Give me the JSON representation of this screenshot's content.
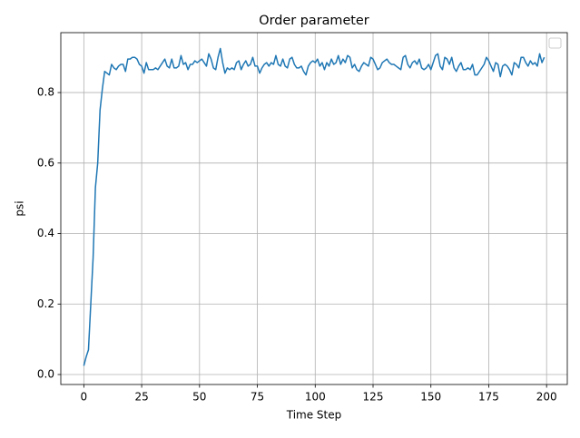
{
  "chart_data": {
    "type": "line",
    "title": "Order parameter",
    "xlabel": "Time Step",
    "ylabel": "psi",
    "x": [
      0,
      1,
      2,
      3,
      4,
      5,
      6,
      7,
      8,
      9,
      10,
      11,
      12,
      13,
      14,
      15,
      16,
      17,
      18,
      19,
      20,
      21,
      22,
      23,
      24,
      25,
      26,
      27,
      28,
      29,
      30,
      31,
      32,
      33,
      34,
      35,
      36,
      37,
      38,
      39,
      40,
      41,
      42,
      43,
      44,
      45,
      46,
      47,
      48,
      49,
      50,
      51,
      52,
      53,
      54,
      55,
      56,
      57,
      58,
      59,
      60,
      61,
      62,
      63,
      64,
      65,
      66,
      67,
      68,
      69,
      70,
      71,
      72,
      73,
      74,
      75,
      76,
      77,
      78,
      79,
      80,
      81,
      82,
      83,
      84,
      85,
      86,
      87,
      88,
      89,
      90,
      91,
      92,
      93,
      94,
      95,
      96,
      97,
      98,
      99,
      100,
      101,
      102,
      103,
      104,
      105,
      106,
      107,
      108,
      109,
      110,
      111,
      112,
      113,
      114,
      115,
      116,
      117,
      118,
      119,
      120,
      121,
      122,
      123,
      124,
      125,
      126,
      127,
      128,
      129,
      130,
      131,
      132,
      133,
      134,
      135,
      136,
      137,
      138,
      139,
      140,
      141,
      142,
      143,
      144,
      145,
      146,
      147,
      148,
      149,
      150,
      151,
      152,
      153,
      154,
      155,
      156,
      157,
      158,
      159,
      160,
      161,
      162,
      163,
      164,
      165,
      166,
      167,
      168,
      169,
      170,
      171,
      172,
      173,
      174,
      175,
      176,
      177,
      178,
      179,
      180,
      181,
      182,
      183,
      184,
      185,
      186,
      187,
      188,
      189,
      190,
      191,
      192,
      193,
      194,
      195,
      196,
      197,
      198,
      199
    ],
    "series": [
      {
        "color": "#1f77b4",
        "values": [
          0.025,
          0.05,
          0.07,
          0.2,
          0.33,
          0.53,
          0.6,
          0.75,
          0.81,
          0.86,
          0.855,
          0.85,
          0.88,
          0.87,
          0.865,
          0.875,
          0.88,
          0.88,
          0.86,
          0.895,
          0.895,
          0.9,
          0.9,
          0.895,
          0.88,
          0.875,
          0.855,
          0.885,
          0.865,
          0.865,
          0.865,
          0.87,
          0.865,
          0.875,
          0.885,
          0.895,
          0.875,
          0.87,
          0.895,
          0.87,
          0.87,
          0.875,
          0.905,
          0.88,
          0.885,
          0.865,
          0.88,
          0.88,
          0.89,
          0.885,
          0.89,
          0.895,
          0.885,
          0.875,
          0.91,
          0.895,
          0.87,
          0.865,
          0.9,
          0.925,
          0.885,
          0.855,
          0.87,
          0.865,
          0.87,
          0.865,
          0.885,
          0.89,
          0.865,
          0.88,
          0.89,
          0.875,
          0.88,
          0.9,
          0.875,
          0.875,
          0.855,
          0.87,
          0.88,
          0.885,
          0.875,
          0.885,
          0.88,
          0.905,
          0.88,
          0.875,
          0.895,
          0.875,
          0.87,
          0.895,
          0.9,
          0.88,
          0.87,
          0.87,
          0.875,
          0.86,
          0.85,
          0.875,
          0.885,
          0.89,
          0.885,
          0.895,
          0.875,
          0.885,
          0.865,
          0.885,
          0.875,
          0.895,
          0.88,
          0.885,
          0.905,
          0.88,
          0.895,
          0.885,
          0.905,
          0.9,
          0.87,
          0.88,
          0.865,
          0.86,
          0.875,
          0.885,
          0.88,
          0.875,
          0.9,
          0.895,
          0.88,
          0.865,
          0.87,
          0.885,
          0.89,
          0.895,
          0.885,
          0.88,
          0.88,
          0.875,
          0.87,
          0.865,
          0.9,
          0.905,
          0.88,
          0.87,
          0.885,
          0.89,
          0.88,
          0.895,
          0.87,
          0.865,
          0.87,
          0.88,
          0.865,
          0.885,
          0.905,
          0.91,
          0.875,
          0.865,
          0.9,
          0.895,
          0.88,
          0.9,
          0.87,
          0.86,
          0.875,
          0.885,
          0.865,
          0.865,
          0.87,
          0.865,
          0.88,
          0.85,
          0.85,
          0.86,
          0.87,
          0.88,
          0.9,
          0.89,
          0.875,
          0.86,
          0.885,
          0.88,
          0.845,
          0.875,
          0.88,
          0.875,
          0.865,
          0.85,
          0.885,
          0.88,
          0.87,
          0.9,
          0.9,
          0.885,
          0.875,
          0.89,
          0.88,
          0.885,
          0.875,
          0.91,
          0.885,
          0.9
        ]
      }
    ],
    "xlim": [
      -9.95,
      208.95
    ],
    "xticks": [
      0,
      25,
      50,
      75,
      100,
      125,
      150,
      175,
      200
    ],
    "ylim": [
      -0.0283,
      0.97
    ],
    "yticks": [
      {
        "value": 0,
        "label": "0.0"
      },
      0.2,
      0.4,
      0.6,
      0.8
    ],
    "grid": true
  }
}
